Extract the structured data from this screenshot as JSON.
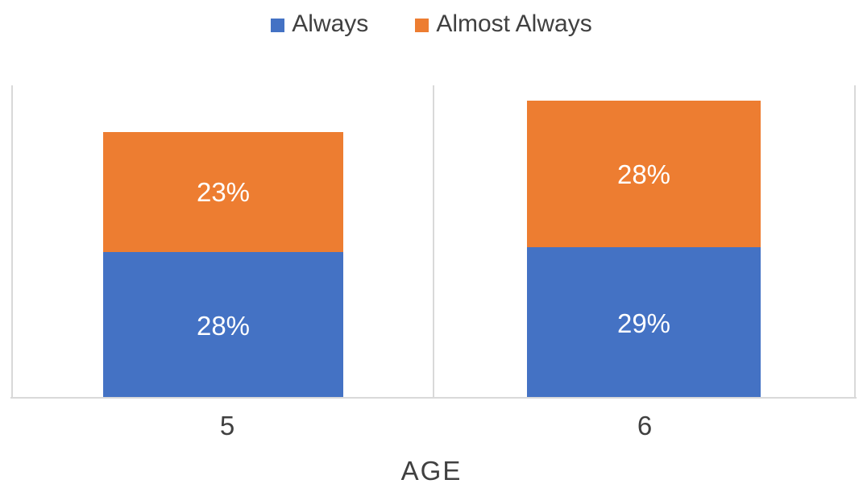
{
  "chart_data": {
    "type": "bar",
    "stacked": true,
    "title": "",
    "categories": [
      "5",
      "6"
    ],
    "series": [
      {
        "name": "Always",
        "color": "#4472C4",
        "values": [
          28,
          29
        ],
        "labels": [
          "28%",
          "29%"
        ]
      },
      {
        "name": "Almost Always",
        "color": "#ED7D31",
        "values": [
          23,
          28
        ],
        "labels": [
          "23%",
          "28%"
        ]
      }
    ],
    "xlabel": "AGE",
    "ylabel": "",
    "ylim": [
      0,
      60
    ],
    "y_axis_labels_visible": false,
    "legend_position": "top",
    "gridlines": "vertical category boundary lines only",
    "data_label_color": "#FFFFFF"
  },
  "colors": {
    "series_blue": "#4472C4",
    "series_orange": "#ED7D31",
    "gridline": "#D9D9D9",
    "axis_text": "#404040",
    "background": "#FFFFFF"
  }
}
